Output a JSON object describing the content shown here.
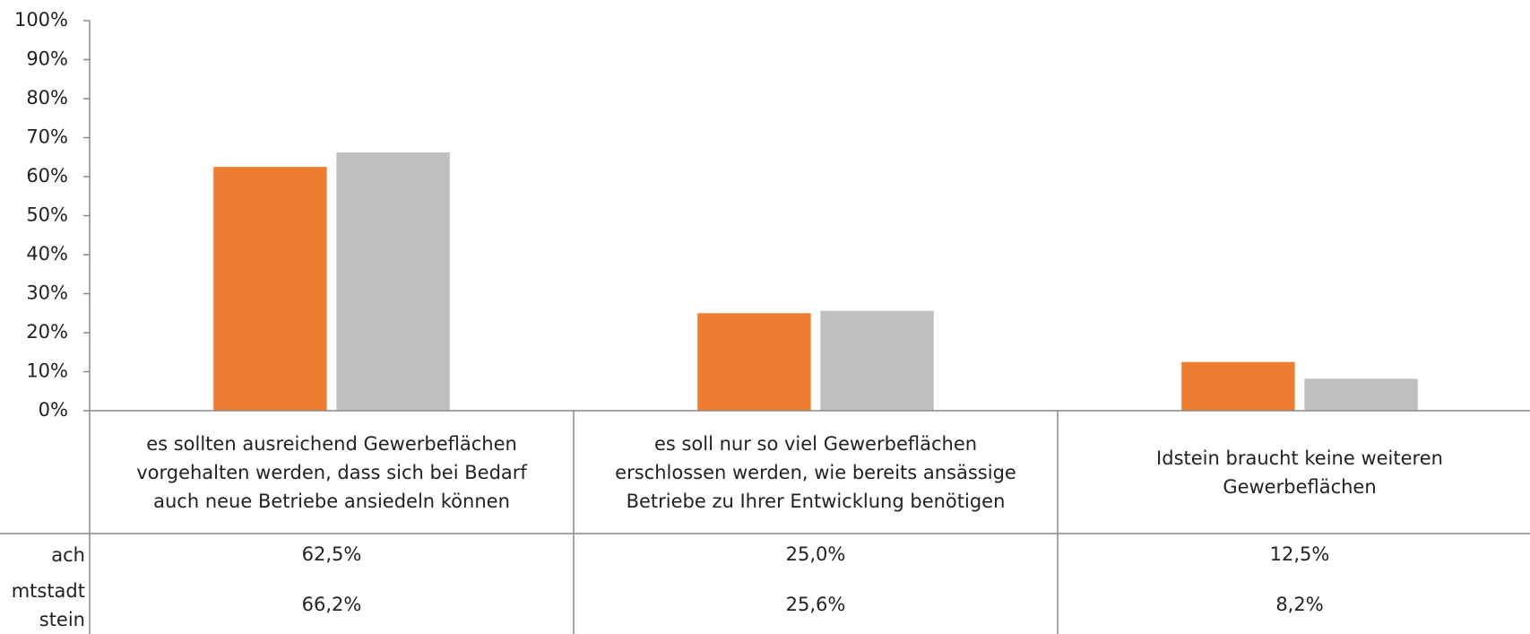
{
  "chart_data": {
    "type": "bar",
    "categories": [
      "es sollten ausreichend Gewerbeflächen vorgehalten werden, dass sich bei Bedarf auch neue Betriebe ansiedeln können",
      "es soll nur so viel Gewerbeflächen erschlossen werden, wie bereits ansässige Betriebe zu Ihrer Entwicklung benötigen",
      "Idstein braucht keine weiteren Gewerbeflächen"
    ],
    "series": [
      {
        "name": "ach",
        "color": "#ed7d31",
        "values": [
          62.5,
          25.0,
          12.5
        ],
        "value_labels": [
          "62,5%",
          "25,0%",
          "12,5%"
        ]
      },
      {
        "name": "mtstadt stein",
        "color": "#bfbfbf",
        "values": [
          66.2,
          25.6,
          8.2
        ],
        "value_labels": [
          "66,2%",
          "25,6%",
          "8,2%"
        ]
      }
    ],
    "ylim": [
      0,
      100
    ],
    "yticks": [
      {
        "value": 0,
        "label": "0%"
      },
      {
        "value": 10,
        "label": "10%"
      },
      {
        "value": 20,
        "label": "20%"
      },
      {
        "value": 30,
        "label": "30%"
      },
      {
        "value": 40,
        "label": "40%"
      },
      {
        "value": 50,
        "label": "50%"
      },
      {
        "value": 60,
        "label": "60%"
      },
      {
        "value": 70,
        "label": "70%"
      },
      {
        "value": 80,
        "label": "80%"
      },
      {
        "value": 90,
        "label": "90%"
      },
      {
        "value": 100,
        "label": "100%"
      }
    ]
  }
}
